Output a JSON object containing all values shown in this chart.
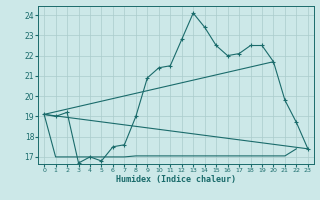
{
  "xlabel": "Humidex (Indice chaleur)",
  "background_color": "#cce8e8",
  "grid_color": "#aacccc",
  "line_color": "#1a6b6b",
  "xlim": [
    -0.5,
    23.5
  ],
  "ylim": [
    16.65,
    24.45
  ],
  "yticks": [
    17,
    18,
    19,
    20,
    21,
    22,
    23,
    24
  ],
  "xticks": [
    0,
    1,
    2,
    3,
    4,
    5,
    6,
    7,
    8,
    9,
    10,
    11,
    12,
    13,
    14,
    15,
    16,
    17,
    18,
    19,
    20,
    21,
    22,
    23
  ],
  "line1_x": [
    0,
    1,
    2,
    3,
    4,
    5,
    6,
    7,
    8,
    9,
    10,
    11,
    12,
    13,
    14,
    15,
    16,
    17,
    18,
    19,
    20,
    21,
    22,
    23
  ],
  "line1_y": [
    19.1,
    19.0,
    19.2,
    16.7,
    17.0,
    16.8,
    17.5,
    17.6,
    19.0,
    20.9,
    21.4,
    21.5,
    22.8,
    24.1,
    23.4,
    22.5,
    22.0,
    22.1,
    22.5,
    22.5,
    21.7,
    19.8,
    18.7,
    17.4
  ],
  "line2_x": [
    0,
    20
  ],
  "line2_y": [
    19.1,
    21.7
  ],
  "line3_x": [
    0,
    23
  ],
  "line3_y": [
    19.1,
    17.4
  ],
  "line4_x": [
    0,
    1,
    2,
    3,
    4,
    5,
    6,
    7,
    8,
    9,
    10,
    11,
    12,
    13,
    14,
    15,
    16,
    17,
    18,
    19,
    20,
    21,
    22
  ],
  "line4_y": [
    19.1,
    17.0,
    17.0,
    17.0,
    17.0,
    17.0,
    17.0,
    17.0,
    17.05,
    17.05,
    17.05,
    17.05,
    17.05,
    17.05,
    17.05,
    17.05,
    17.05,
    17.05,
    17.05,
    17.05,
    17.05,
    17.05,
    17.4
  ]
}
